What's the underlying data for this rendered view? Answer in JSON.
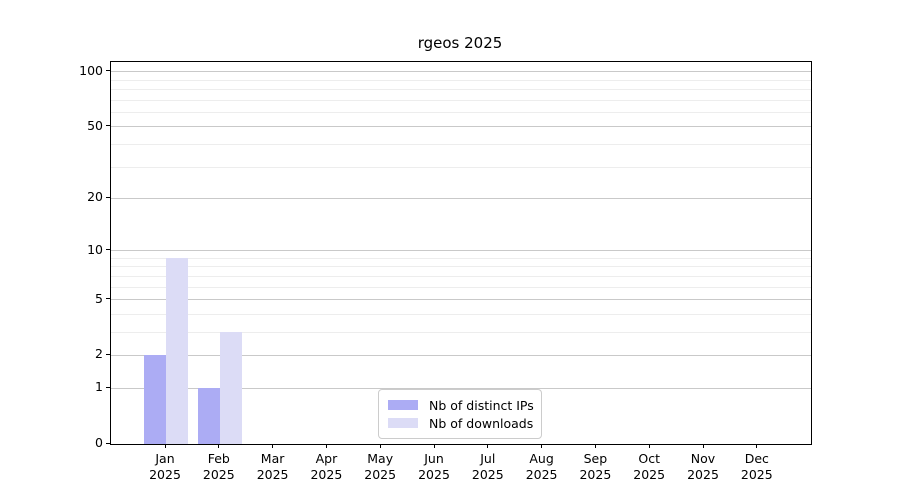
{
  "title": "rgeos 2025",
  "chart_data": {
    "type": "bar",
    "title": "rgeos 2025",
    "categories": [
      "Jan 2025",
      "Feb 2025",
      "Mar 2025",
      "Apr 2025",
      "May 2025",
      "Jun 2025",
      "Jul 2025",
      "Aug 2025",
      "Sep 2025",
      "Oct 2025",
      "Nov 2025",
      "Dec 2025"
    ],
    "series": [
      {
        "name": "Nb of distinct IPs",
        "color": "#acacf4",
        "values": [
          2,
          1,
          0,
          0,
          0,
          0,
          0,
          0,
          0,
          0,
          0,
          0
        ]
      },
      {
        "name": "Nb of downloads",
        "color": "#dcdcf6",
        "values": [
          9,
          3,
          0,
          0,
          0,
          0,
          0,
          0,
          0,
          0,
          0,
          0
        ]
      }
    ],
    "xlabel": "",
    "ylabel": "",
    "yscale": "log1p",
    "ylim": [
      0,
      112
    ],
    "yticks": [
      0,
      1,
      2,
      5,
      10,
      20,
      50,
      100
    ],
    "minor_gridlines": [
      3,
      4,
      6,
      7,
      8,
      9,
      30,
      40,
      60,
      70,
      80,
      90
    ],
    "grid": "horizontal",
    "legend_position": "lower center"
  },
  "legend": {
    "items": [
      {
        "label": "Nb of distinct IPs",
        "color": "#acacf4"
      },
      {
        "label": "Nb of downloads",
        "color": "#dcdcf6"
      }
    ]
  },
  "colors": {
    "bar_distinct_ips": "#acacf4",
    "bar_downloads": "#dcdcf6",
    "grid_major": "#c9c9c9",
    "grid_minor": "#ededed",
    "spine": "#000000",
    "legend_border": "#cccccc",
    "background": "#ffffff"
  }
}
